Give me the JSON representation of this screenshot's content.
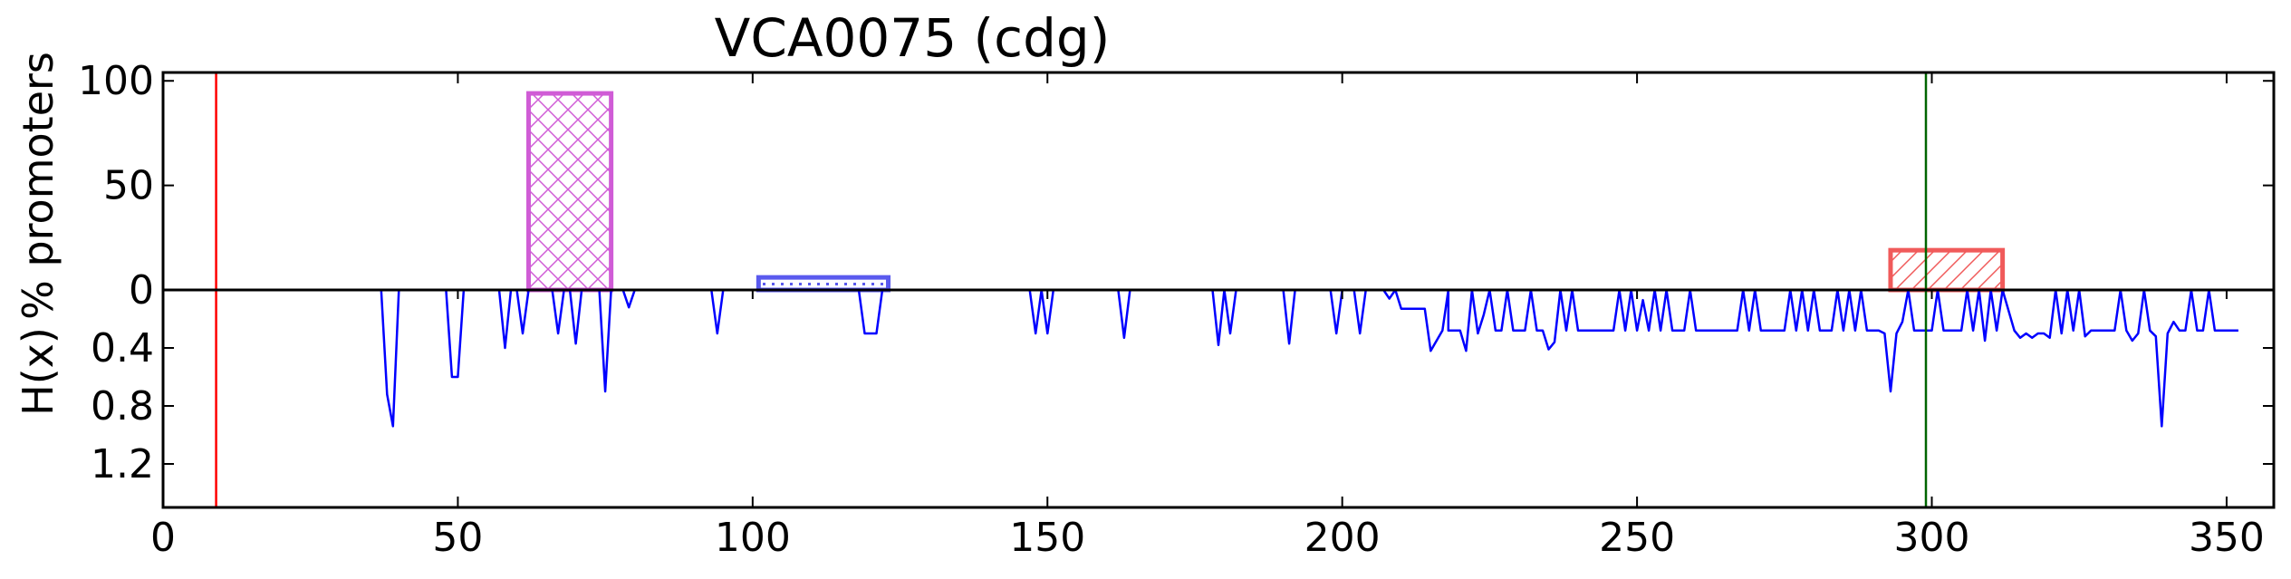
{
  "chart_data": {
    "type": "bar",
    "title": "VCA0075 (cdg)",
    "xlabel": "",
    "xlim": [
      0,
      358
    ],
    "x_ticks": [
      "0",
      "50",
      "100",
      "150",
      "200",
      "250",
      "300",
      "350"
    ],
    "x_tick_values": [
      0,
      50,
      100,
      150,
      200,
      250,
      300,
      350
    ],
    "top_panel": {
      "ylabel": "% promoters",
      "ylim": [
        0,
        104
      ],
      "y_ticks": [
        "0",
        "50",
        "100"
      ],
      "y_tick_values": [
        0,
        50,
        100
      ],
      "boxes": [
        {
          "x_start": 62,
          "x_end": 76,
          "value": 94,
          "color": "#d05cd6",
          "hatch": "crosshatch"
        },
        {
          "x_start": 101,
          "x_end": 123,
          "value": 6,
          "color": "#5a5aee",
          "hatch": "dots"
        },
        {
          "x_start": 293,
          "x_end": 312,
          "value": 19,
          "color": "#f05a5a",
          "hatch": "diagonal"
        }
      ]
    },
    "bottom_panel": {
      "ylabel": "H(x)",
      "ylim": [
        0,
        1.5
      ],
      "inverted": true,
      "y_ticks": [
        "0.4",
        "0.8",
        "1.2"
      ],
      "y_tick_values": [
        0.4,
        0.8,
        1.2
      ],
      "series_color": "#0000ff",
      "entropy": [
        [
          37,
          0
        ],
        [
          38,
          0.72
        ],
        [
          39,
          0.94
        ],
        [
          40,
          0
        ],
        [
          48,
          0
        ],
        [
          49,
          0.6
        ],
        [
          50,
          0.6
        ],
        [
          51,
          0
        ],
        [
          57,
          0
        ],
        [
          58,
          0.4
        ],
        [
          59,
          0
        ],
        [
          60,
          0
        ],
        [
          61,
          0.3
        ],
        [
          62,
          0
        ],
        [
          66,
          0
        ],
        [
          67,
          0.3
        ],
        [
          68,
          0
        ],
        [
          69,
          0
        ],
        [
          70,
          0.37
        ],
        [
          71,
          0
        ],
        [
          74,
          0
        ],
        [
          75,
          0.7
        ],
        [
          76,
          0
        ],
        [
          78,
          0
        ],
        [
          79,
          0.12
        ],
        [
          80,
          0
        ],
        [
          93,
          0
        ],
        [
          94,
          0.3
        ],
        [
          95,
          0
        ],
        [
          118,
          0
        ],
        [
          119,
          0.3
        ],
        [
          121,
          0.3
        ],
        [
          122,
          0
        ],
        [
          147,
          0
        ],
        [
          148,
          0.3
        ],
        [
          149,
          0
        ],
        [
          150,
          0.3
        ],
        [
          151,
          0
        ],
        [
          162,
          0
        ],
        [
          163,
          0.33
        ],
        [
          164,
          0
        ],
        [
          178,
          0
        ],
        [
          179,
          0.38
        ],
        [
          180,
          0
        ],
        [
          181,
          0.3
        ],
        [
          182,
          0
        ],
        [
          190,
          0
        ],
        [
          191,
          0.37
        ],
        [
          192,
          0
        ],
        [
          198,
          0
        ],
        [
          199,
          0.3
        ],
        [
          200,
          0
        ],
        [
          202,
          0
        ],
        [
          203,
          0.3
        ],
        [
          204,
          0
        ],
        [
          207,
          0
        ],
        [
          208,
          0.06
        ],
        [
          209,
          0
        ],
        [
          210,
          0.13
        ],
        [
          214,
          0.13
        ],
        [
          215,
          0.42
        ],
        [
          216,
          0.35
        ],
        [
          217,
          0.28
        ],
        [
          218,
          0
        ],
        [
          218,
          0.28
        ],
        [
          220,
          0.28
        ],
        [
          221,
          0.42
        ],
        [
          222,
          0
        ],
        [
          223,
          0.3
        ],
        [
          224,
          0.17
        ],
        [
          225,
          0
        ],
        [
          226,
          0.28
        ],
        [
          227,
          0.28
        ],
        [
          228,
          0
        ],
        [
          229,
          0.28
        ],
        [
          231,
          0.28
        ],
        [
          232,
          0
        ],
        [
          233,
          0.28
        ],
        [
          234,
          0.28
        ],
        [
          235,
          0.41
        ],
        [
          236,
          0.36
        ],
        [
          237,
          0
        ],
        [
          238,
          0.28
        ],
        [
          239,
          0
        ],
        [
          240,
          0.28
        ],
        [
          246,
          0.28
        ],
        [
          247,
          0
        ],
        [
          248,
          0.28
        ],
        [
          249,
          0
        ],
        [
          250,
          0.28
        ],
        [
          251,
          0.07
        ],
        [
          252,
          0.28
        ],
        [
          253,
          0
        ],
        [
          254,
          0.28
        ],
        [
          255,
          0
        ],
        [
          256,
          0.28
        ],
        [
          258,
          0.28
        ],
        [
          259,
          0
        ],
        [
          260,
          0.28
        ],
        [
          267,
          0.28
        ],
        [
          268,
          0
        ],
        [
          269,
          0.28
        ],
        [
          270,
          0
        ],
        [
          271,
          0.28
        ],
        [
          275,
          0.28
        ],
        [
          276,
          0
        ],
        [
          277,
          0.28
        ],
        [
          278,
          0
        ],
        [
          279,
          0.28
        ],
        [
          280,
          0
        ],
        [
          281,
          0.28
        ],
        [
          283,
          0.28
        ],
        [
          284,
          0
        ],
        [
          285,
          0.28
        ],
        [
          286,
          0
        ],
        [
          287,
          0.28
        ],
        [
          288,
          0
        ],
        [
          289,
          0.28
        ],
        [
          291,
          0.28
        ],
        [
          292,
          0.3
        ],
        [
          293,
          0.7
        ],
        [
          294,
          0.3
        ],
        [
          295,
          0.22
        ],
        [
          296,
          0
        ],
        [
          297,
          0.28
        ],
        [
          300,
          0.28
        ],
        [
          301,
          0
        ],
        [
          302,
          0.28
        ],
        [
          305,
          0.28
        ],
        [
          306,
          0
        ],
        [
          307,
          0.28
        ],
        [
          308,
          0
        ],
        [
          309,
          0.35
        ],
        [
          310,
          0
        ],
        [
          311,
          0.28
        ],
        [
          312,
          0
        ],
        [
          314,
          0.28
        ],
        [
          315,
          0.33
        ],
        [
          316,
          0.3
        ],
        [
          317,
          0.33
        ],
        [
          318,
          0.3
        ],
        [
          319,
          0.3
        ],
        [
          320,
          0.33
        ],
        [
          321,
          0
        ],
        [
          322,
          0.3
        ],
        [
          323,
          0
        ],
        [
          324,
          0.28
        ],
        [
          325,
          0
        ],
        [
          326,
          0.32
        ],
        [
          327,
          0.28
        ],
        [
          331,
          0.28
        ],
        [
          332,
          0
        ],
        [
          333,
          0.28
        ],
        [
          334,
          0.35
        ],
        [
          335,
          0.3
        ],
        [
          336,
          0
        ],
        [
          337,
          0.28
        ],
        [
          338,
          0.32
        ],
        [
          339,
          0.94
        ],
        [
          340,
          0.3
        ],
        [
          341,
          0.22
        ],
        [
          342,
          0.28
        ],
        [
          343,
          0.28
        ],
        [
          344,
          0
        ],
        [
          345,
          0.28
        ],
        [
          346,
          0.28
        ],
        [
          347,
          0
        ],
        [
          348,
          0.28
        ],
        [
          352,
          0.28
        ]
      ]
    },
    "reference_lines": [
      {
        "x": 9,
        "color": "#ff0000"
      },
      {
        "x": 299,
        "color": "#006400"
      }
    ]
  }
}
